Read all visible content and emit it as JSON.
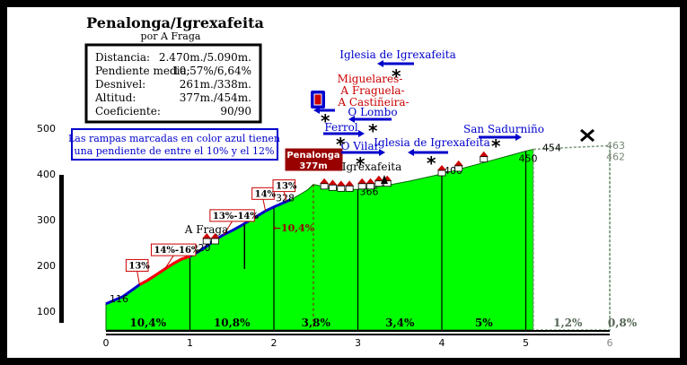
{
  "title": "Penalonga/Igrexafeita",
  "author": "por A Fraga",
  "stats": [
    {
      "label": "Distancia:",
      "value": "2.470m./5.090m."
    },
    {
      "label": "Pendiente media:",
      "value": "10,57%/6,64%"
    },
    {
      "label": "Desnivel:",
      "value": "261m./338m."
    },
    {
      "label": "Altitud:",
      "value": "377m./454m."
    },
    {
      "label": "Coeficiente:",
      "value": "90/90"
    }
  ],
  "note_line1": "Las rampas marcadas en color azul tienen",
  "note_line2": "una pendiente de entre el 10% y el 12%",
  "summit_label_1": "Penalonga",
  "summit_label_2": "377m",
  "colors": {
    "background": "#000000",
    "panel": "#ffffff",
    "profile_fill": "#00ff00",
    "dashed_fill": "#ffffff",
    "line_blue": "#0000cc",
    "line_red": "#ff0000",
    "label_blue": "#0000cc",
    "label_red": "#cc0000",
    "summit_box": "#990000"
  },
  "places": {
    "iglesia_top": "Iglesia de Igrexafeita",
    "miguelares": "Miguelares-",
    "fraguela": "A Fraguela-",
    "castineira": "A Castiñeira-",
    "lombo": "O Lombo",
    "ferrol": "Ferrol",
    "vilar": "O Vilar",
    "iglesia_mid": "Iglesia de Igrexafeita",
    "sadurnino": "San Sadurniño",
    "igrexafeita": "Igrexafeita",
    "afraga": "A Fraga"
  },
  "chart_data": {
    "type": "area",
    "xlabel": "",
    "ylabel": "",
    "xlim": [
      0,
      6
    ],
    "ylim": [
      100,
      500
    ],
    "x_ticks": [
      "0",
      "1",
      "2",
      "3",
      "4",
      "5",
      "6"
    ],
    "y_ticks": [
      "100",
      "200",
      "300",
      "400",
      "500"
    ],
    "profile": {
      "x": [
        0,
        0.1,
        0.2,
        0.3,
        0.4,
        0.5,
        0.6,
        0.7,
        0.8,
        0.9,
        1.0,
        1.1,
        1.2,
        1.3,
        1.4,
        1.5,
        1.6,
        1.7,
        1.8,
        1.9,
        2.0,
        2.1,
        2.2,
        2.3,
        2.4,
        2.47,
        2.55,
        2.65,
        2.75,
        2.85,
        2.95,
        3.0,
        3.2,
        3.4,
        3.6,
        3.8,
        4.0,
        4.2,
        4.4,
        4.6,
        4.8,
        5.0,
        5.09
      ],
      "y": [
        116,
        124,
        132,
        145,
        158,
        168,
        180,
        192,
        204,
        214,
        220,
        230,
        242,
        256,
        267,
        276,
        286,
        297,
        308,
        319,
        328,
        336,
        344,
        354,
        365,
        377,
        374,
        371,
        368,
        366,
        366,
        366,
        371,
        377,
        384,
        392,
        400,
        410,
        420,
        430,
        440,
        450,
        454
      ]
    },
    "extension": {
      "x": [
        5.09,
        6.0
      ],
      "y": [
        454,
        462
      ]
    },
    "extension_peak": 463,
    "segments": [
      {
        "from": 0,
        "to": 1,
        "gradient": "10,4%"
      },
      {
        "from": 1,
        "to": 2,
        "gradient": "10,8%"
      },
      {
        "from": 2,
        "to": 3,
        "gradient": "3,8%"
      },
      {
        "from": 3,
        "to": 4,
        "gradient": "3,4%"
      },
      {
        "from": 4,
        "to": 5,
        "gradient": "5%"
      },
      {
        "from": 5,
        "to": 6,
        "gradient": "1,2%"
      },
      {
        "from": 6,
        "to": 6,
        "gradient": "0,8%"
      }
    ],
    "point_labels": [
      {
        "x": 0,
        "y": 116,
        "text": "116"
      },
      {
        "x": 1,
        "y": 220,
        "text": "220"
      },
      {
        "x": 2,
        "y": 328,
        "text": "328"
      },
      {
        "x": 3,
        "y": 366,
        "text": "366"
      },
      {
        "x": 4,
        "y": 400,
        "text": "400"
      },
      {
        "x": 5,
        "y": 450,
        "text": "450"
      },
      {
        "x": 5.09,
        "y": 454,
        "text": "454"
      },
      {
        "x": 6,
        "y": 462,
        "text": "462"
      },
      {
        "x": 6,
        "y": 463,
        "text": "463"
      }
    ],
    "ramps": [
      {
        "x": 0.4,
        "y": 158,
        "text": "13%"
      },
      {
        "x": 0.7,
        "y": 192,
        "text": "14%-16%"
      },
      {
        "x": 1.4,
        "y": 267,
        "text": "13%-14%"
      },
      {
        "x": 1.9,
        "y": 319,
        "text": "14%"
      },
      {
        "x": 2.15,
        "y": 340,
        "text": "13%"
      }
    ],
    "summit_section": {
      "x": 2.47,
      "y": 377,
      "gradient": "10,4%"
    }
  }
}
